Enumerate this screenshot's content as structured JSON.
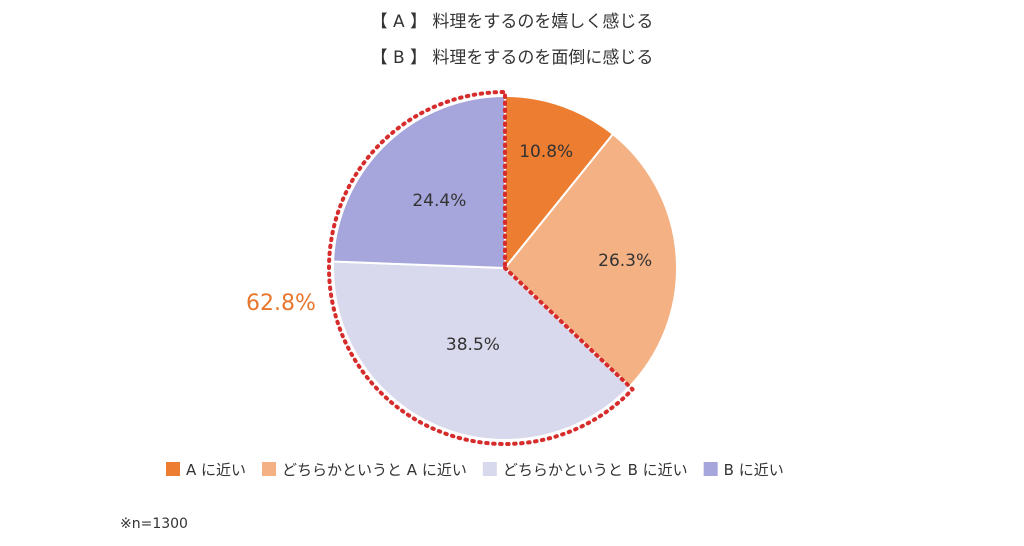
{
  "chart_data": {
    "type": "pie",
    "title": [
      "【 A 】 料理をするのを嬉しく感じる",
      "【 B 】 料理をするのを面倒に感じる"
    ],
    "categories": [
      "A に近い",
      "どちらかというと A に近い",
      "どちらかというと B に近い",
      "B に近い"
    ],
    "values": [
      10.8,
      26.3,
      38.5,
      24.4
    ],
    "value_labels": [
      "10.8%",
      "26.3%",
      "38.5%",
      "24.4%"
    ],
    "colors": [
      "#ed7d31",
      "#f4b183",
      "#d9d9ee",
      "#a6a6dd"
    ],
    "start_angle": "12 o'clock",
    "direction": "clockwise",
    "highlight": {
      "label": "62.8%",
      "slices": [
        "どちらかというと B に近い",
        "B に近い"
      ],
      "outline_color": "#d62c2c",
      "outline_style": "dotted",
      "label_color": "#e8772e"
    },
    "legend_position": "bottom"
  },
  "note": "※n=1300"
}
